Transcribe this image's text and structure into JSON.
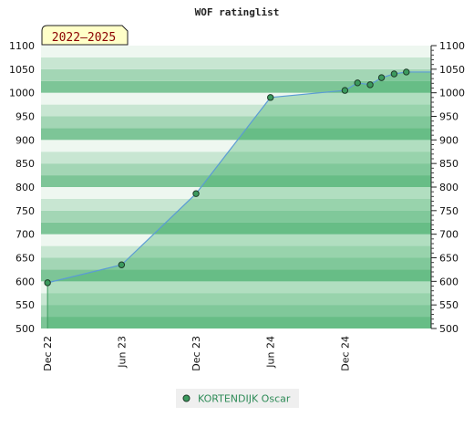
{
  "chart_data": {
    "type": "area",
    "title": "WOF ratinglist",
    "period_badge": "2022–2025",
    "xlabel": "",
    "ylabel": "",
    "ylim": [
      500,
      1100
    ],
    "yticks": [
      500,
      550,
      600,
      650,
      700,
      750,
      800,
      850,
      900,
      950,
      1000,
      1050,
      1100
    ],
    "xlim": [
      "2022-11-15",
      "2025-07-01"
    ],
    "xticks": [
      {
        "date": "2022-12-01",
        "label": "Dec 22"
      },
      {
        "date": "2023-06-01",
        "label": "Jun 23"
      },
      {
        "date": "2023-12-01",
        "label": "Dec 23"
      },
      {
        "date": "2024-06-01",
        "label": "Jun 24"
      },
      {
        "date": "2024-12-01",
        "label": "Dec 24"
      }
    ],
    "series": [
      {
        "name": "KORTENDIJK Oscar",
        "points": [
          {
            "x": "2022-12-01",
            "y": 597
          },
          {
            "x": "2023-06-01",
            "y": 635
          },
          {
            "x": "2023-12-01",
            "y": 786
          },
          {
            "x": "2024-06-01",
            "y": 990
          },
          {
            "x": "2024-12-01",
            "y": 1005
          },
          {
            "x": "2025-01-01",
            "y": 1021
          },
          {
            "x": "2025-02-01",
            "y": 1017
          },
          {
            "x": "2025-03-01",
            "y": 1032
          },
          {
            "x": "2025-04-01",
            "y": 1040
          },
          {
            "x": "2025-05-01",
            "y": 1044
          }
        ]
      }
    ],
    "legend_position": "bottom-center",
    "grid": true
  },
  "colors": {
    "band_dark": "#7dc597",
    "band_light": "#eef7f0",
    "fill": "#3fae67",
    "line": "#5b9bd5",
    "marker": "#3c9a5e",
    "legend_text": "#2e8b57"
  }
}
